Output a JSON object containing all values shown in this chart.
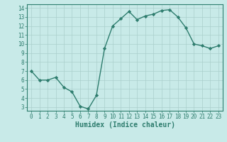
{
  "x": [
    0,
    1,
    2,
    3,
    4,
    5,
    6,
    7,
    8,
    9,
    10,
    11,
    12,
    13,
    14,
    15,
    16,
    17,
    18,
    19,
    20,
    21,
    22,
    23
  ],
  "y": [
    7.0,
    6.0,
    6.0,
    6.3,
    5.2,
    4.7,
    3.1,
    2.8,
    4.3,
    9.5,
    12.0,
    12.8,
    13.6,
    12.7,
    13.1,
    13.3,
    13.7,
    13.8,
    13.0,
    11.8,
    10.0,
    9.8,
    9.5,
    9.8
  ],
  "line_color": "#2e7d6e",
  "marker": "D",
  "marker_size": 2.2,
  "bg_color": "#c8eae8",
  "grid_color": "#aacfcc",
  "xlabel": "Humidex (Indice chaleur)",
  "ylim": [
    2.6,
    14.4
  ],
  "xlim": [
    -0.5,
    23.5
  ],
  "yticks": [
    3,
    4,
    5,
    6,
    7,
    8,
    9,
    10,
    11,
    12,
    13,
    14
  ],
  "xticks": [
    0,
    1,
    2,
    3,
    4,
    5,
    6,
    7,
    8,
    9,
    10,
    11,
    12,
    13,
    14,
    15,
    16,
    17,
    18,
    19,
    20,
    21,
    22,
    23
  ],
  "tick_label_fontsize": 5.5,
  "xlabel_fontsize": 7.0,
  "label_color": "#2e7d6e"
}
